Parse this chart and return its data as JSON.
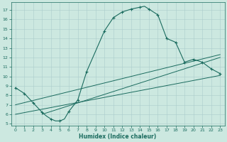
{
  "xlabel": "Humidex (Indice chaleur)",
  "bg_color": "#cce8e0",
  "line_color": "#1a6b5e",
  "grid_color": "#aacccc",
  "xlim": [
    -0.5,
    23.5
  ],
  "ylim": [
    4.8,
    17.8
  ],
  "xticks": [
    0,
    1,
    2,
    3,
    4,
    5,
    6,
    7,
    8,
    9,
    10,
    11,
    12,
    13,
    14,
    15,
    16,
    17,
    18,
    19,
    20,
    21,
    22,
    23
  ],
  "yticks": [
    5,
    6,
    7,
    8,
    9,
    10,
    11,
    12,
    13,
    14,
    15,
    16,
    17
  ],
  "main_curve_x": [
    0,
    1,
    2,
    3,
    3.5,
    4,
    4.5,
    5,
    5.5,
    6,
    7,
    8,
    10,
    11,
    12,
    13,
    14,
    14.5,
    15,
    16,
    17,
    18,
    19,
    20,
    21,
    22,
    23
  ],
  "main_curve_y": [
    8.8,
    8.2,
    7.2,
    6.2,
    5.8,
    5.5,
    5.3,
    5.3,
    5.5,
    6.3,
    7.5,
    10.5,
    14.8,
    16.2,
    16.8,
    17.1,
    17.3,
    17.4,
    17.1,
    16.5,
    14.0,
    13.6,
    11.5,
    11.8,
    11.5,
    10.8,
    10.3
  ],
  "line1_x": [
    0,
    23
  ],
  "line1_y": [
    6.0,
    10.1
  ],
  "line2_x": [
    0,
    23
  ],
  "line2_y": [
    7.0,
    12.3
  ],
  "line3_x": [
    3,
    23
  ],
  "line3_y": [
    6.0,
    12.0
  ],
  "marker_x": [
    0,
    1,
    2,
    3,
    4,
    5,
    6,
    7,
    8,
    10,
    11,
    12,
    13,
    14,
    15,
    16,
    17,
    18,
    19,
    20,
    21,
    22,
    23
  ],
  "marker_y": [
    8.8,
    8.2,
    7.2,
    6.2,
    5.5,
    5.3,
    6.3,
    7.5,
    10.5,
    14.8,
    16.2,
    16.8,
    17.1,
    17.3,
    17.1,
    16.5,
    14.0,
    13.6,
    11.5,
    11.8,
    11.5,
    10.8,
    10.3
  ]
}
